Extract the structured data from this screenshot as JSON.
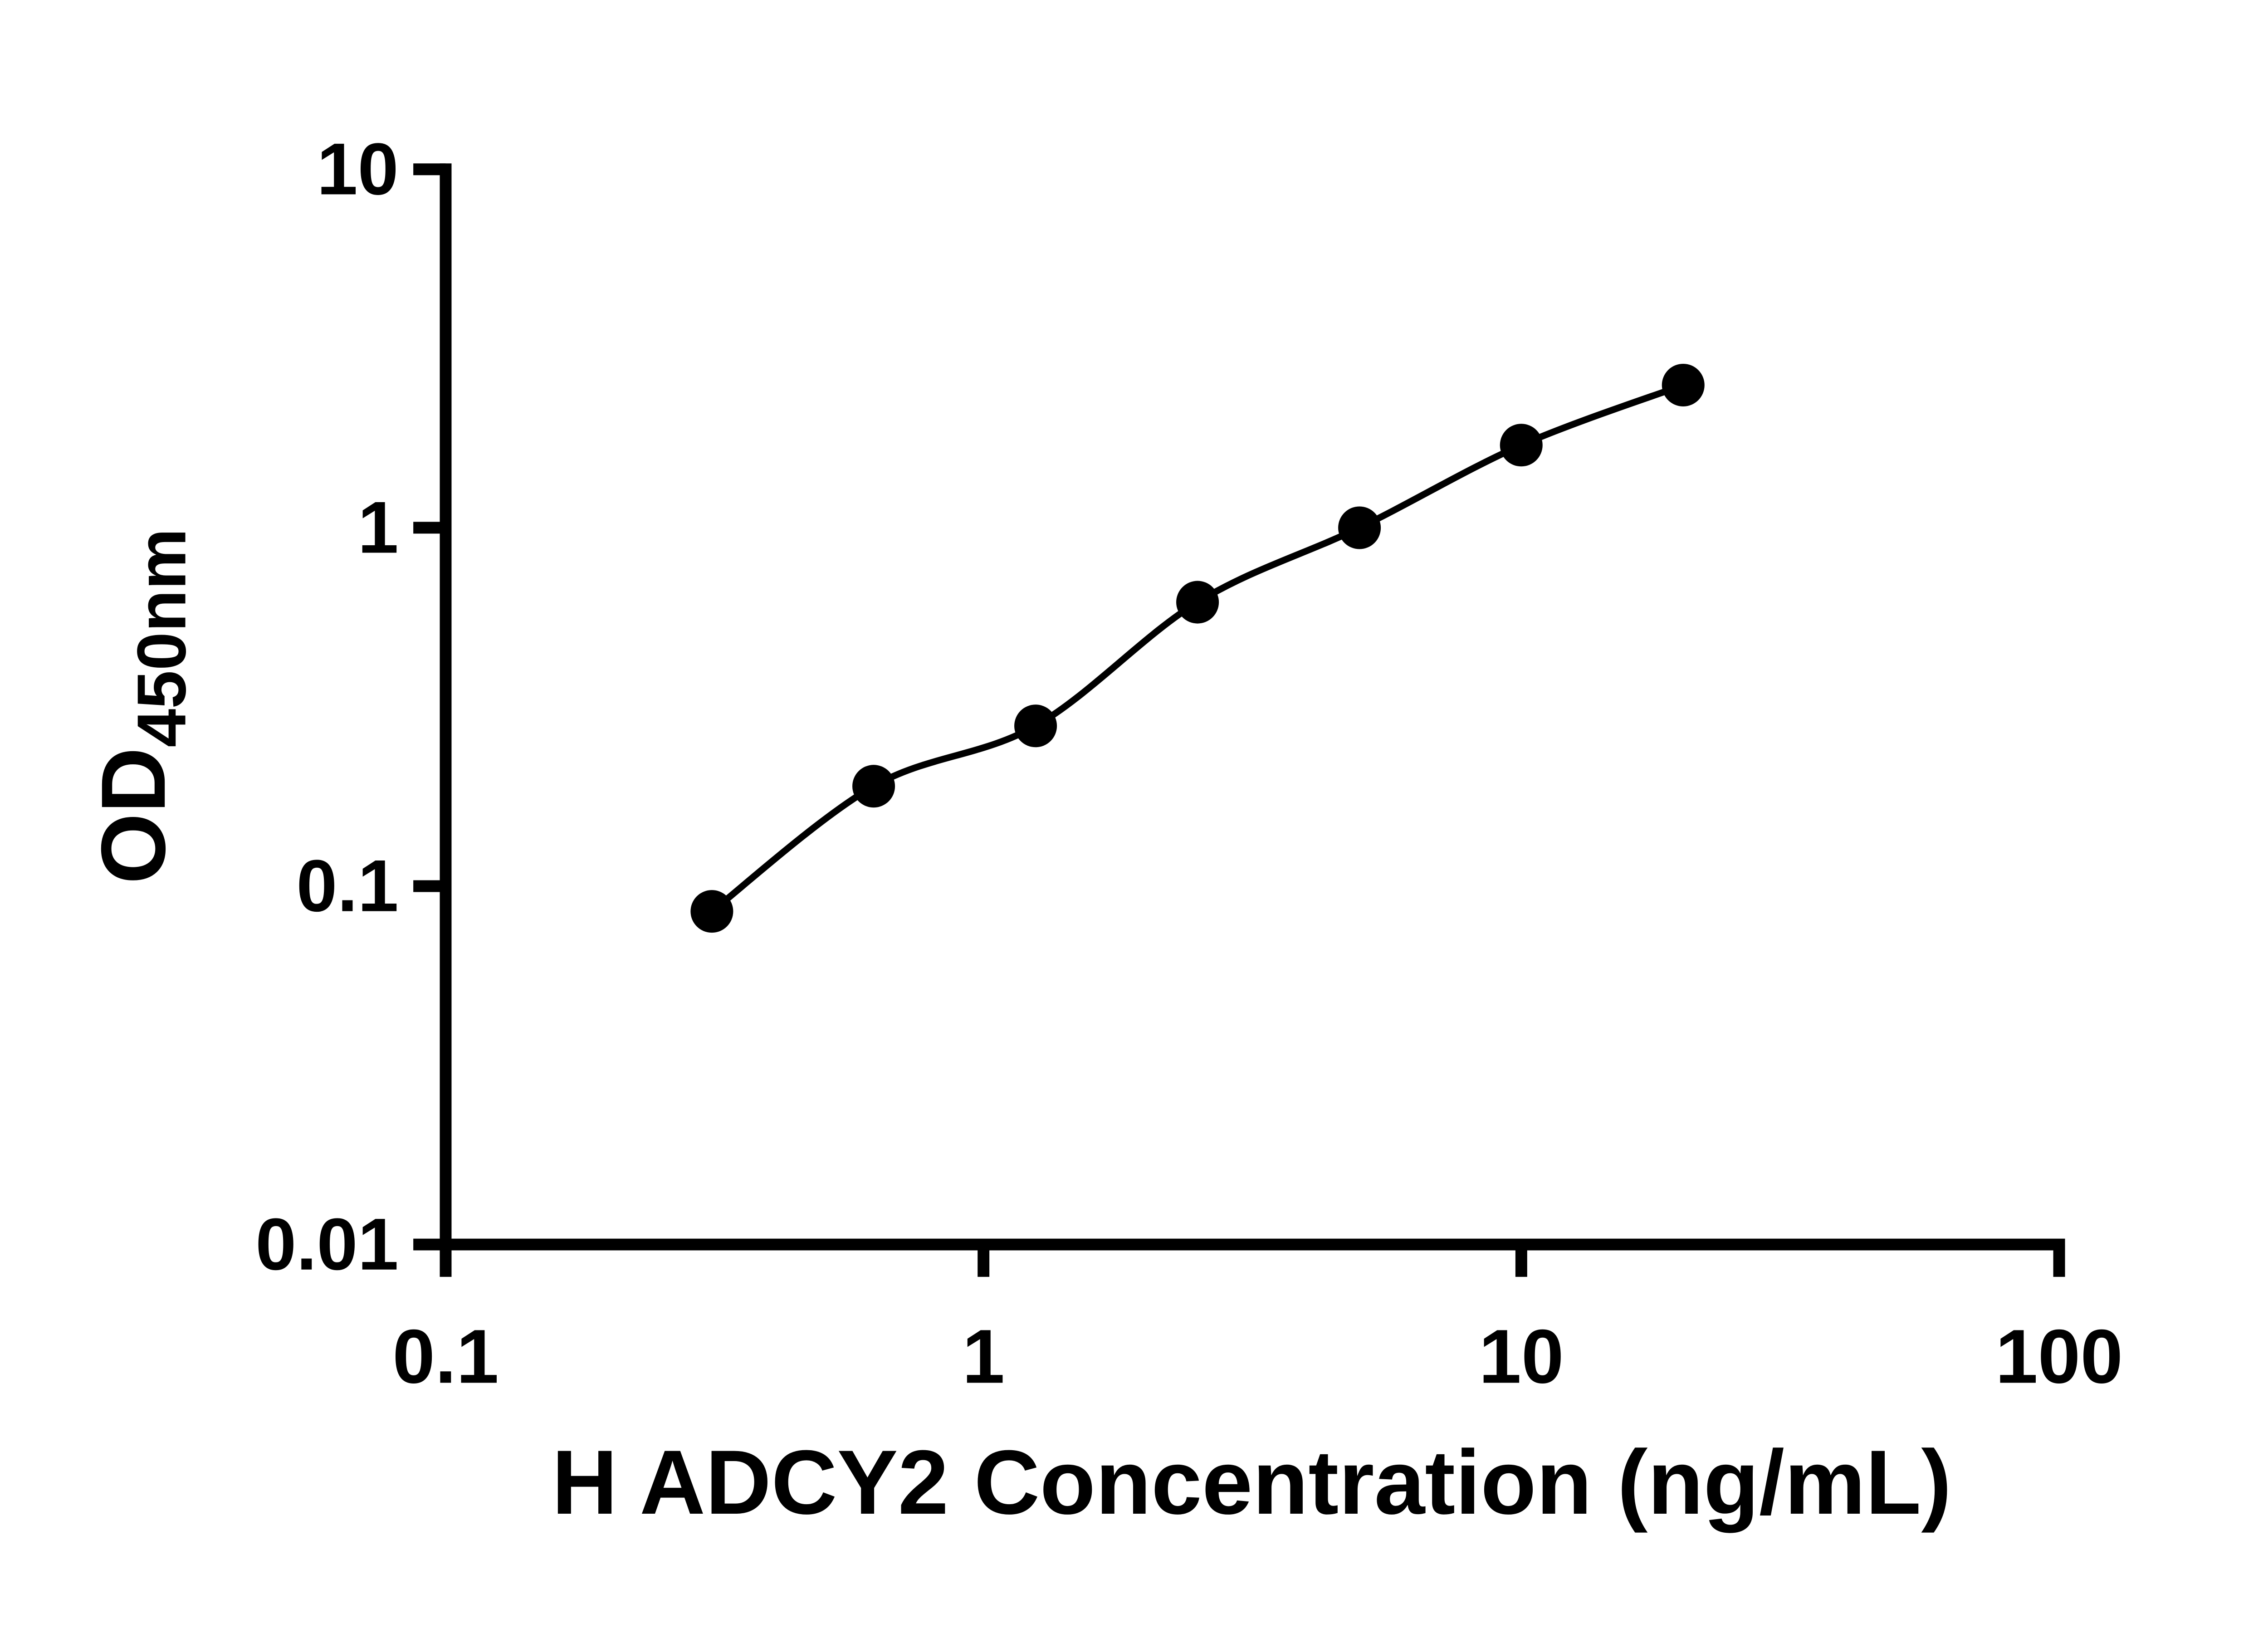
{
  "page": {
    "background": "#ffffff"
  },
  "chart_data": {
    "type": "scatter",
    "subtype": "standard-curve-with-fit-line",
    "title": "",
    "xlabel": "H ADCY2 Concentration (ng/mL)",
    "ylabel": "OD",
    "ylabel_subscript": "450nm",
    "x_scale": "log10",
    "y_scale": "log10",
    "xlim": [
      0.1,
      100
    ],
    "ylim": [
      0.01,
      10
    ],
    "x_ticks": [
      "0.1",
      "1",
      "10",
      "100"
    ],
    "y_ticks": [
      "0.01",
      "0.1",
      "1",
      "10"
    ],
    "grid": false,
    "legend": false,
    "axis_color": "#000000",
    "marker": {
      "shape": "circle",
      "color": "#000000",
      "radius": 14.5
    },
    "line": {
      "color": "#000000",
      "width": 4.5,
      "smooth": true
    },
    "points": [
      {
        "x": 0.3125,
        "y": 0.085
      },
      {
        "x": 0.625,
        "y": 0.19
      },
      {
        "x": 1.25,
        "y": 0.28
      },
      {
        "x": 2.5,
        "y": 0.62
      },
      {
        "x": 5,
        "y": 1.0
      },
      {
        "x": 10,
        "y": 1.7
      },
      {
        "x": 20,
        "y": 2.5
      }
    ]
  }
}
